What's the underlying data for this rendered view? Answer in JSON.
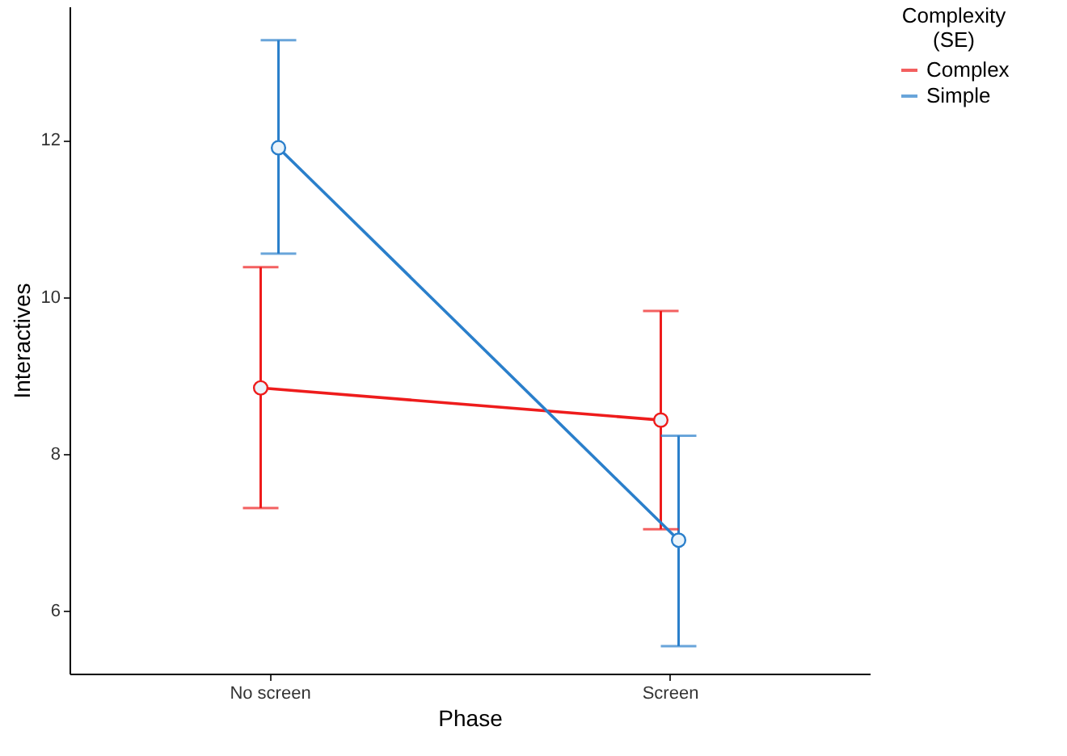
{
  "chart_data": {
    "type": "line",
    "xlabel": "Phase",
    "ylabel": "Interactives",
    "legend_title": "Complexity\n(SE)",
    "categories": [
      "No screen",
      "Screen"
    ],
    "ylim": [
      5.2,
      13.7
    ],
    "yticks": [
      6,
      8,
      10,
      12
    ],
    "grid": false,
    "legend": "right",
    "marker": "circle",
    "line_style": "solid",
    "series": [
      {
        "name": "Complex",
        "color": "#ee1c1c",
        "values": [
          8.84,
          8.43
        ],
        "errors": [
          [
            7.31,
            10.38
          ],
          [
            7.04,
            9.82
          ]
        ]
      },
      {
        "name": "Simple",
        "color": "#2a7fcb",
        "values": [
          11.9,
          6.9
        ],
        "errors": [
          [
            10.55,
            13.27
          ],
          [
            5.55,
            8.23
          ]
        ]
      }
    ]
  }
}
